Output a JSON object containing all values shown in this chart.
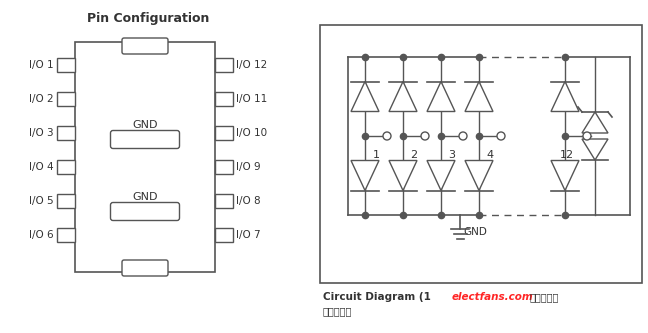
{
  "title_left": "Pin Configuration",
  "bg_color": "#ffffff",
  "left_pins": [
    "I/O 1",
    "I/O 2",
    "I/O 3",
    "I/O 4",
    "I/O 5",
    "I/O 6"
  ],
  "right_pins": [
    "I/O 12",
    "I/O 11",
    "I/O 10",
    "I/O 9",
    "I/O 8",
    "I/O 7"
  ],
  "gnd_labels": [
    "GND",
    "GND"
  ],
  "circuit_caption": "Circuit Diagram (1",
  "circuit_caption2": "电路原理及",
  "diode_nums": [
    "1",
    "2",
    "3",
    "4",
    "12"
  ],
  "text_color": "#333333",
  "line_color": "#555555",
  "watermark": "electfans.com"
}
